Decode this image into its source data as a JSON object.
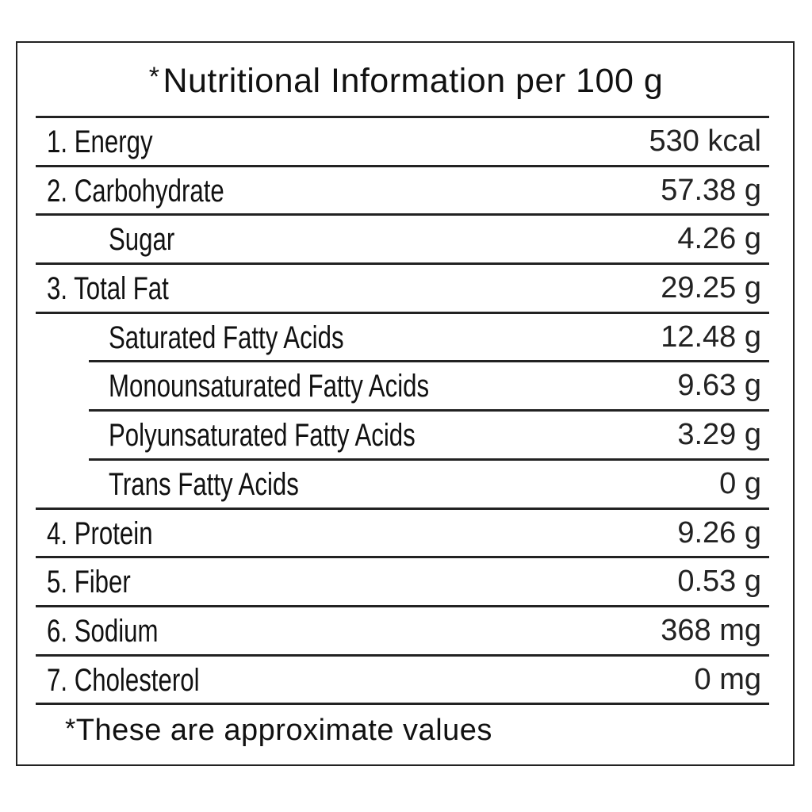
{
  "title": {
    "marker": "*",
    "text": "Nutritional Information per 100 g"
  },
  "rows": [
    {
      "label": "1. Energy",
      "value": "530 kcal",
      "indent": false
    },
    {
      "label": "2. Carbohydrate",
      "value": "57.38 g",
      "indent": false
    },
    {
      "label": "Sugar",
      "value": "4.26 g",
      "indent": true
    },
    {
      "label": "3. Total Fat",
      "value": "29.25 g",
      "indent": false
    },
    {
      "label": "Saturated Fatty Acids",
      "value": "12.48 g",
      "indent": true
    },
    {
      "label": "Monounsaturated Fatty Acids",
      "value": "9.63 g",
      "indent": true
    },
    {
      "label": "Polyunsaturated Fatty Acids",
      "value": "3.29 g",
      "indent": true
    },
    {
      "label": "Trans Fatty Acids",
      "value": "0 g",
      "indent": true
    },
    {
      "label": "4. Protein",
      "value": "9.26 g",
      "indent": false
    },
    {
      "label": "5. Fiber",
      "value": "0.53 g",
      "indent": false
    },
    {
      "label": "6. Sodium",
      "value": "368 mg",
      "indent": false
    },
    {
      "label": "7. Cholesterol",
      "value": "0 mg",
      "indent": false
    }
  ],
  "footnote": {
    "marker": "*",
    "text": "These are approximate values"
  }
}
